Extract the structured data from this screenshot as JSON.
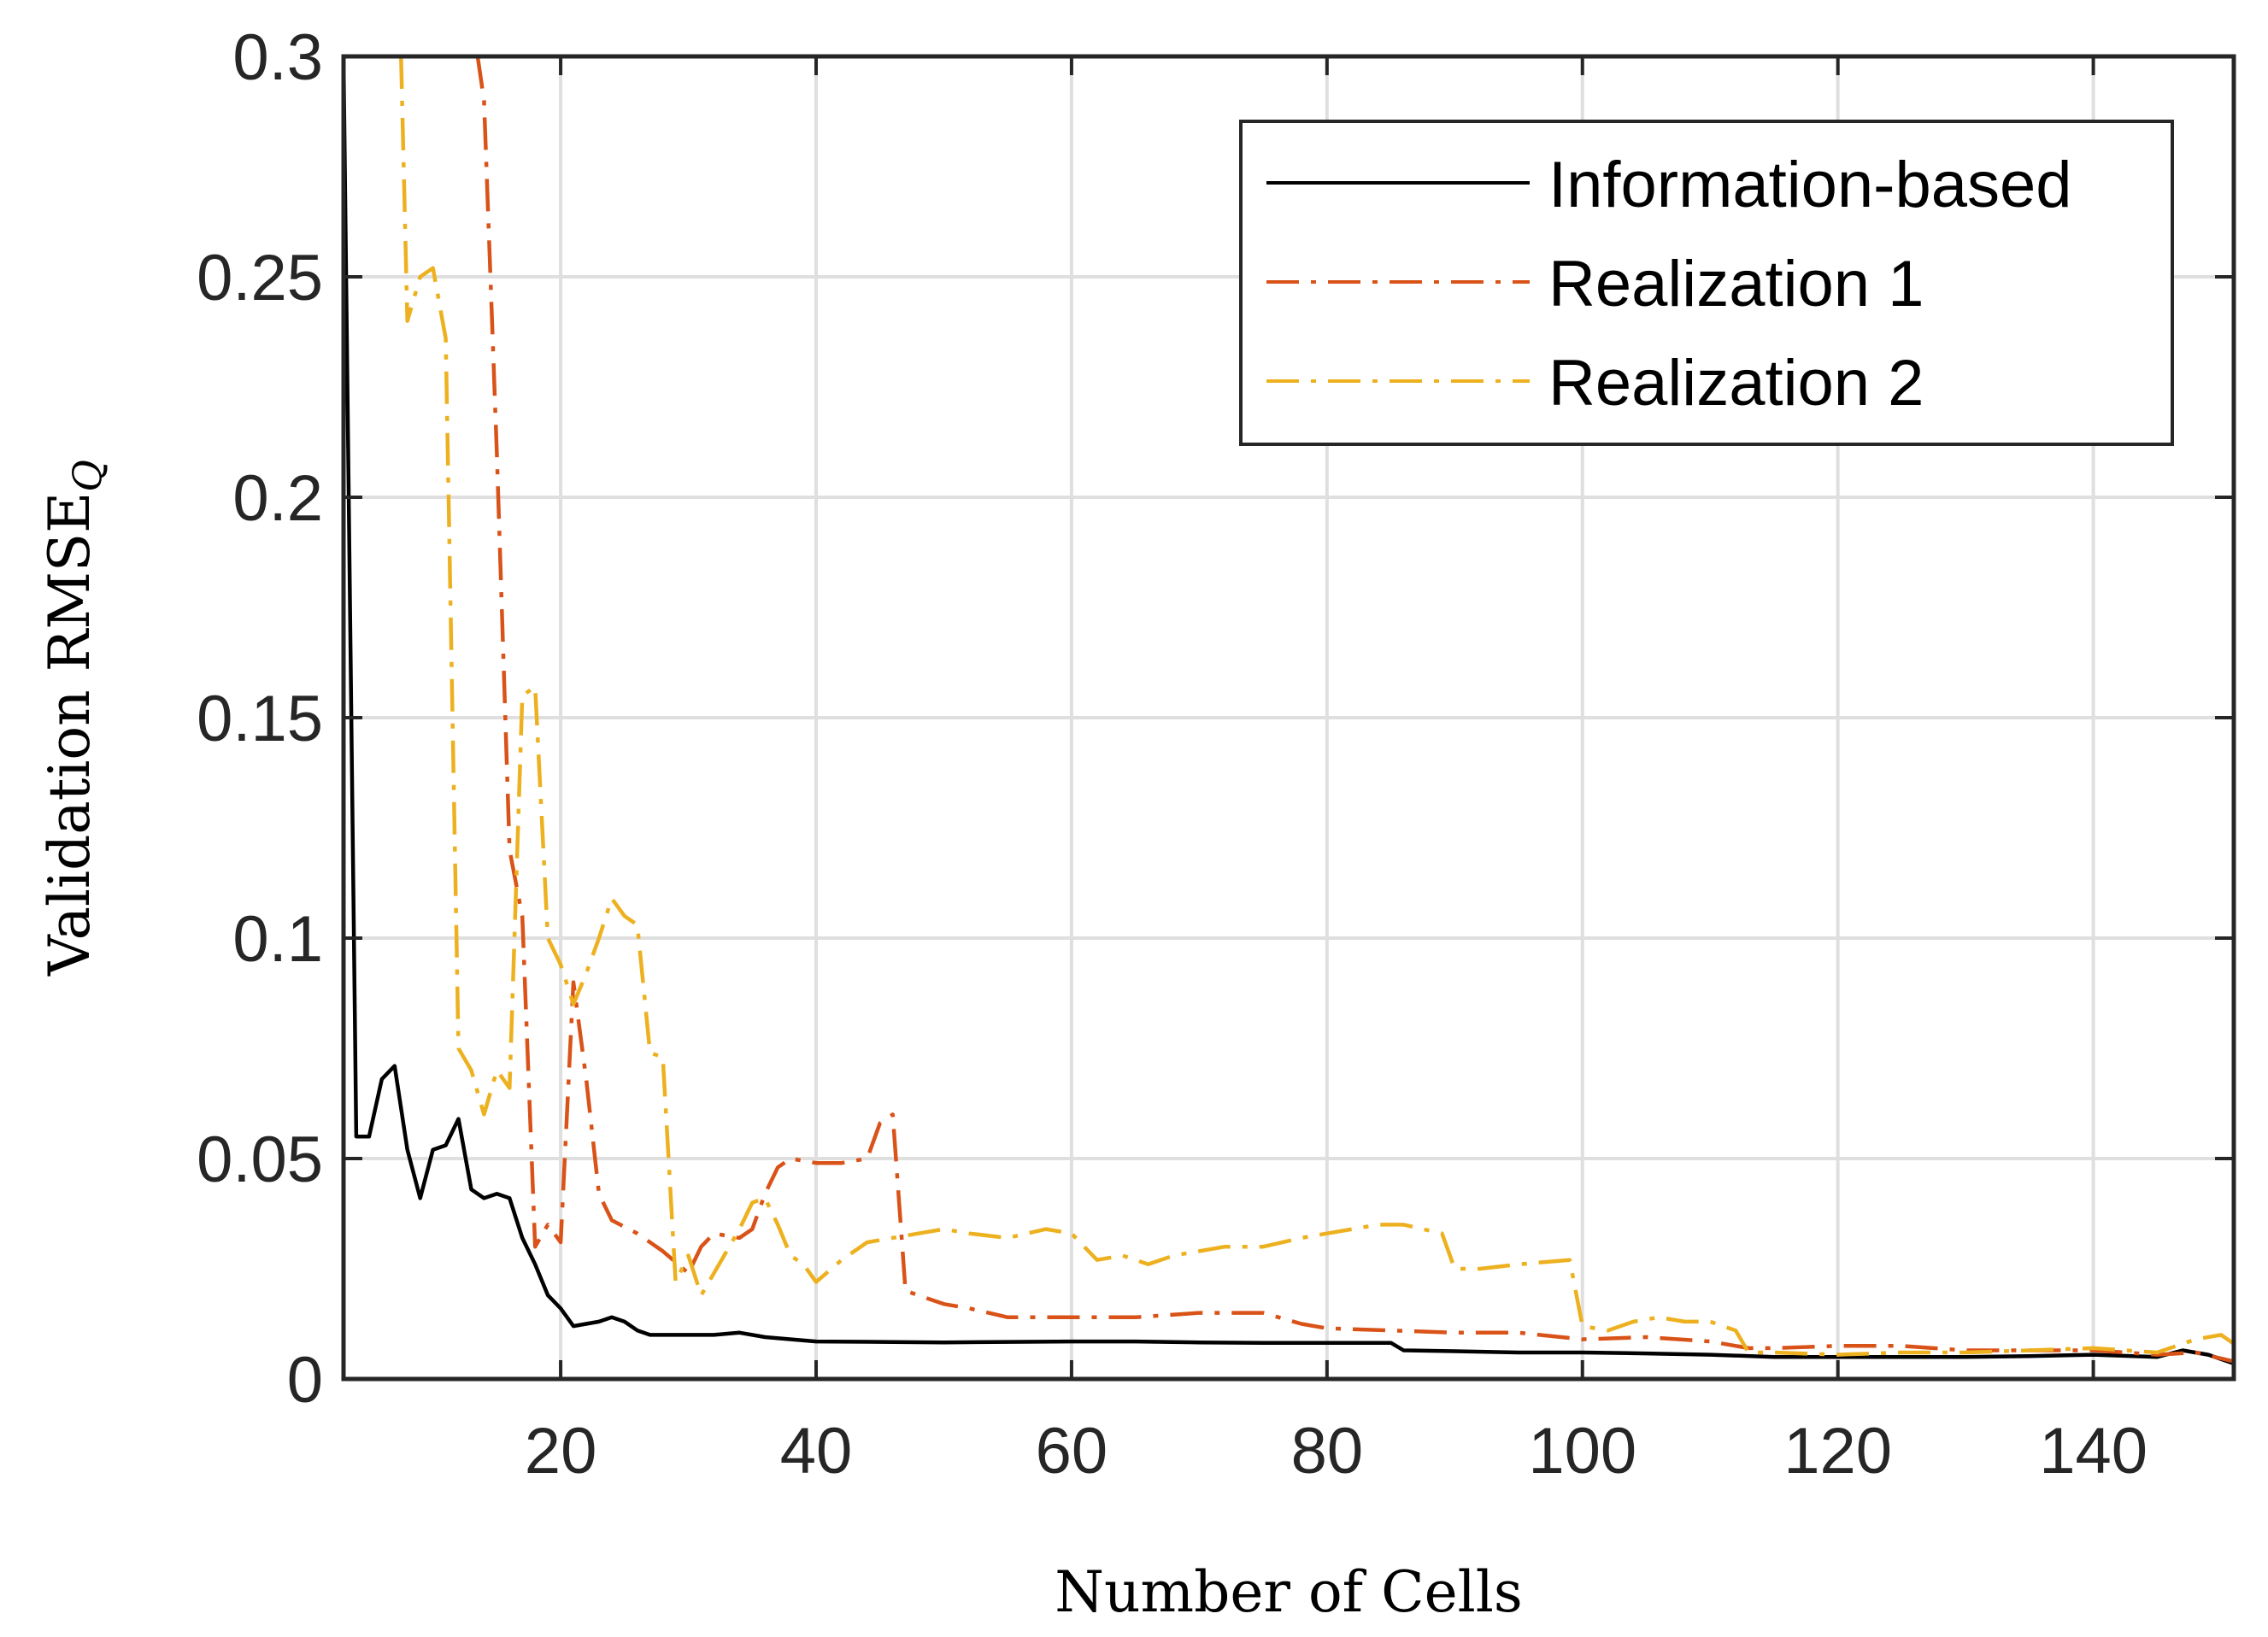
{
  "chart_data": {
    "type": "line",
    "xlabel": "Number of Cells",
    "ylabel": "Validation RMSE",
    "ylabel_subscript": "Q",
    "xlim": [
      3,
      151
    ],
    "ylim": [
      0,
      0.3
    ],
    "xticks": [
      20,
      40,
      60,
      80,
      100,
      120,
      140
    ],
    "yticks": [
      0,
      0.05,
      0.1,
      0.15,
      0.2,
      0.25,
      0.3
    ],
    "ytick_labels": [
      "0",
      "0.05",
      "0.1",
      "0.15",
      "0.2",
      "0.25",
      "0.3"
    ],
    "grid": true,
    "legend_position": "top-right",
    "series": [
      {
        "name": "Information-based",
        "color": "#000000",
        "style": "solid",
        "points": [
          [
            3,
            0.3
          ],
          [
            4,
            0.055
          ],
          [
            5,
            0.055
          ],
          [
            6,
            0.068
          ],
          [
            7,
            0.071
          ],
          [
            8,
            0.052
          ],
          [
            9,
            0.041
          ],
          [
            10,
            0.052
          ],
          [
            11,
            0.053
          ],
          [
            12,
            0.059
          ],
          [
            13,
            0.043
          ],
          [
            14,
            0.041
          ],
          [
            15,
            0.042
          ],
          [
            16,
            0.041
          ],
          [
            17,
            0.032
          ],
          [
            18,
            0.026
          ],
          [
            19,
            0.019
          ],
          [
            20,
            0.016
          ],
          [
            21,
            0.012
          ],
          [
            23,
            0.013
          ],
          [
            24,
            0.014
          ],
          [
            25,
            0.013
          ],
          [
            26,
            0.011
          ],
          [
            27,
            0.01
          ],
          [
            30,
            0.01
          ],
          [
            32,
            0.01
          ],
          [
            34,
            0.0105
          ],
          [
            36,
            0.0095
          ],
          [
            40,
            0.0085
          ],
          [
            50,
            0.0083
          ],
          [
            60,
            0.0085
          ],
          [
            65,
            0.0085
          ],
          [
            70,
            0.0083
          ],
          [
            75,
            0.0082
          ],
          [
            80,
            0.0082
          ],
          [
            85,
            0.0082
          ],
          [
            86,
            0.0065
          ],
          [
            90,
            0.0063
          ],
          [
            95,
            0.006
          ],
          [
            100,
            0.006
          ],
          [
            105,
            0.0058
          ],
          [
            110,
            0.0055
          ],
          [
            115,
            0.005
          ],
          [
            120,
            0.005
          ],
          [
            125,
            0.005
          ],
          [
            130,
            0.005
          ],
          [
            135,
            0.0052
          ],
          [
            140,
            0.0055
          ],
          [
            145,
            0.005
          ],
          [
            147,
            0.0065
          ],
          [
            149,
            0.0055
          ],
          [
            151,
            0.0035
          ]
        ]
      },
      {
        "name": "Realization 1",
        "color": "#d95319",
        "style": "dashdot",
        "points": [
          [
            13.5,
            0.3
          ],
          [
            14,
            0.29
          ],
          [
            15,
            0.21
          ],
          [
            16,
            0.12
          ],
          [
            17,
            0.105
          ],
          [
            18,
            0.03
          ],
          [
            19,
            0.035
          ],
          [
            20,
            0.031
          ],
          [
            21,
            0.09
          ],
          [
            22,
            0.068
          ],
          [
            23,
            0.042
          ],
          [
            24,
            0.036
          ],
          [
            26,
            0.033
          ],
          [
            28,
            0.029
          ],
          [
            30,
            0.024
          ],
          [
            31,
            0.03
          ],
          [
            32,
            0.033
          ],
          [
            34,
            0.032
          ],
          [
            35,
            0.034
          ],
          [
            36,
            0.042
          ],
          [
            37,
            0.048
          ],
          [
            38,
            0.05
          ],
          [
            40,
            0.049
          ],
          [
            42,
            0.049
          ],
          [
            44,
            0.05
          ],
          [
            45,
            0.058
          ],
          [
            46,
            0.06
          ],
          [
            47,
            0.02
          ],
          [
            48,
            0.019
          ],
          [
            50,
            0.017
          ],
          [
            52,
            0.016
          ],
          [
            55,
            0.014
          ],
          [
            60,
            0.014
          ],
          [
            65,
            0.014
          ],
          [
            70,
            0.015
          ],
          [
            75,
            0.015
          ],
          [
            78,
            0.0125
          ],
          [
            80,
            0.0115
          ],
          [
            85,
            0.011
          ],
          [
            90,
            0.0105
          ],
          [
            95,
            0.0105
          ],
          [
            100,
            0.009
          ],
          [
            105,
            0.0095
          ],
          [
            110,
            0.0085
          ],
          [
            113,
            0.007
          ],
          [
            115,
            0.007
          ],
          [
            120,
            0.0075
          ],
          [
            125,
            0.0075
          ],
          [
            130,
            0.0065
          ],
          [
            135,
            0.0065
          ],
          [
            140,
            0.0065
          ],
          [
            145,
            0.0055
          ],
          [
            148,
            0.006
          ],
          [
            151,
            0.004
          ]
        ]
      },
      {
        "name": "Realization 2",
        "color": "#edb120",
        "style": "dashdot",
        "points": [
          [
            7.5,
            0.3
          ],
          [
            8,
            0.24
          ],
          [
            9,
            0.25
          ],
          [
            10,
            0.252
          ],
          [
            11,
            0.236
          ],
          [
            12,
            0.075
          ],
          [
            13,
            0.07
          ],
          [
            14,
            0.06
          ],
          [
            15,
            0.07
          ],
          [
            16,
            0.066
          ],
          [
            17,
            0.155
          ],
          [
            18,
            0.157
          ],
          [
            19,
            0.1
          ],
          [
            20,
            0.094
          ],
          [
            21,
            0.085
          ],
          [
            22,
            0.092
          ],
          [
            23,
            0.1
          ],
          [
            24,
            0.109
          ],
          [
            25,
            0.105
          ],
          [
            26,
            0.103
          ],
          [
            27,
            0.074
          ],
          [
            28,
            0.073
          ],
          [
            29,
            0.022
          ],
          [
            30,
            0.028
          ],
          [
            31,
            0.019
          ],
          [
            32,
            0.024
          ],
          [
            34,
            0.034
          ],
          [
            35,
            0.04
          ],
          [
            36,
            0.041
          ],
          [
            37,
            0.035
          ],
          [
            38,
            0.028
          ],
          [
            39,
            0.026
          ],
          [
            40,
            0.022
          ],
          [
            42,
            0.027
          ],
          [
            44,
            0.031
          ],
          [
            46,
            0.032
          ],
          [
            48,
            0.033
          ],
          [
            50,
            0.034
          ],
          [
            52,
            0.033
          ],
          [
            55,
            0.032
          ],
          [
            58,
            0.034
          ],
          [
            60,
            0.033
          ],
          [
            62,
            0.027
          ],
          [
            64,
            0.028
          ],
          [
            66,
            0.026
          ],
          [
            68,
            0.028
          ],
          [
            70,
            0.029
          ],
          [
            72,
            0.03
          ],
          [
            75,
            0.03
          ],
          [
            78,
            0.032
          ],
          [
            80,
            0.033
          ],
          [
            82,
            0.034
          ],
          [
            84,
            0.035
          ],
          [
            86,
            0.035
          ],
          [
            89,
            0.033
          ],
          [
            90,
            0.025
          ],
          [
            92,
            0.025
          ],
          [
            95,
            0.026
          ],
          [
            99,
            0.027
          ],
          [
            100,
            0.012
          ],
          [
            102,
            0.011
          ],
          [
            104,
            0.013
          ],
          [
            106,
            0.014
          ],
          [
            108,
            0.013
          ],
          [
            110,
            0.013
          ],
          [
            112,
            0.011
          ],
          [
            113,
            0.006
          ],
          [
            115,
            0.006
          ],
          [
            120,
            0.0055
          ],
          [
            125,
            0.006
          ],
          [
            130,
            0.006
          ],
          [
            135,
            0.0065
          ],
          [
            140,
            0.007
          ],
          [
            145,
            0.006
          ],
          [
            148,
            0.009
          ],
          [
            150,
            0.01
          ],
          [
            151,
            0.008
          ]
        ]
      }
    ]
  }
}
